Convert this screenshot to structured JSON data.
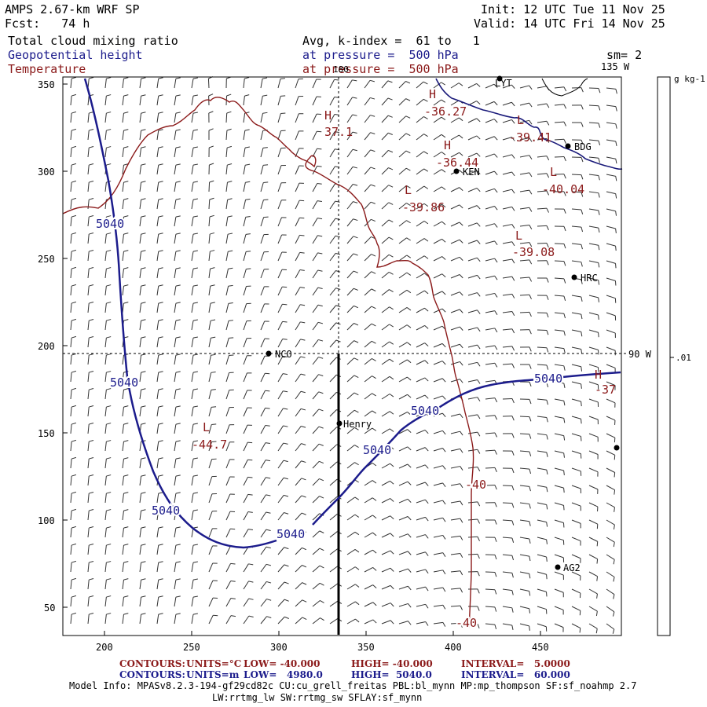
{
  "header": {
    "model": "AMPS 2.67-km WRF SP",
    "init": "Init: 12 UTC Tue 11 Nov 25",
    "fcst": "Fcst:   74 h",
    "valid": "Valid: 14 UTC Fri 14 Nov 25",
    "field1": "Total cloud mixing ratio",
    "field2": "Geopotential height",
    "field3": "Temperature",
    "avg": "Avg, k-index =  61 to   1",
    "pressure_blue": "at pressure =  500 hPa",
    "pressure_red": "at pressure =  500 hPa",
    "sm": "sm= 2"
  },
  "map": {
    "lon_labels": {
      "top_180": "180",
      "lon_135w": "135 W",
      "lon_90w": "90 W"
    },
    "x_ticks": [
      "200",
      "250",
      "300",
      "350",
      "400",
      "450"
    ],
    "y_ticks": [
      "350",
      "300",
      "250",
      "200",
      "150",
      "100",
      "50"
    ],
    "stations": {
      "lyt": "LYT",
      "bdg": "BDG",
      "ken": "KEN",
      "hrc": "HRC",
      "nco": "NCO",
      "henry": "Henry",
      "ag2": "AG2"
    },
    "extrema": {
      "h1": "H",
      "h1_val": "37.1",
      "h2": "H",
      "h2_val": "-36.27",
      "h3": "H",
      "h3_val": "-36.44",
      "l1": "L",
      "l1_val": "-39.41",
      "l2": "L",
      "l2_val": "-40.04",
      "l3": "L",
      "l3_val": "-39.86",
      "l4": "L",
      "l4_val": "-39.08",
      "l5": "L",
      "l5_val": "-44.7",
      "h4": "H",
      "h4_val": "-37"
    },
    "contour_labels": {
      "height": [
        "5040",
        "5040",
        "5040",
        "5040",
        "5040",
        "5040",
        "5040"
      ],
      "temp": [
        "-40",
        "-40"
      ]
    }
  },
  "colorbar": {
    "units": "g kg-1",
    "tick": ".01"
  },
  "footer": {
    "c1_label": "CONTOURS:",
    "c1_units": "UNITS=°C",
    "c1_low": "LOW= -40.000",
    "c1_high": "HIGH= -40.000",
    "c1_interval": "INTERVAL=   5.0000",
    "c2_label": "CONTOURS:",
    "c2_units": "UNITS=m",
    "c2_low": "LOW=   4980.0",
    "c2_high": "HIGH=  5040.0",
    "c2_interval": "INTERVAL=   60.000",
    "info1": "Model Info: MPASv8.2.3-194-gf29cd82c CU:cu_grell_freitas PBL:bl_mynn MP:mp_thompson SF:sf_noahmp 2.7",
    "info2": "LW:rrtmg_lw SW:rrtmg_sw SFLAY:sf_mynn"
  },
  "colors": {
    "height_contour": "#1c1c8c",
    "temp_contour": "#8b1a1a",
    "coast": "#1a1a7a"
  }
}
